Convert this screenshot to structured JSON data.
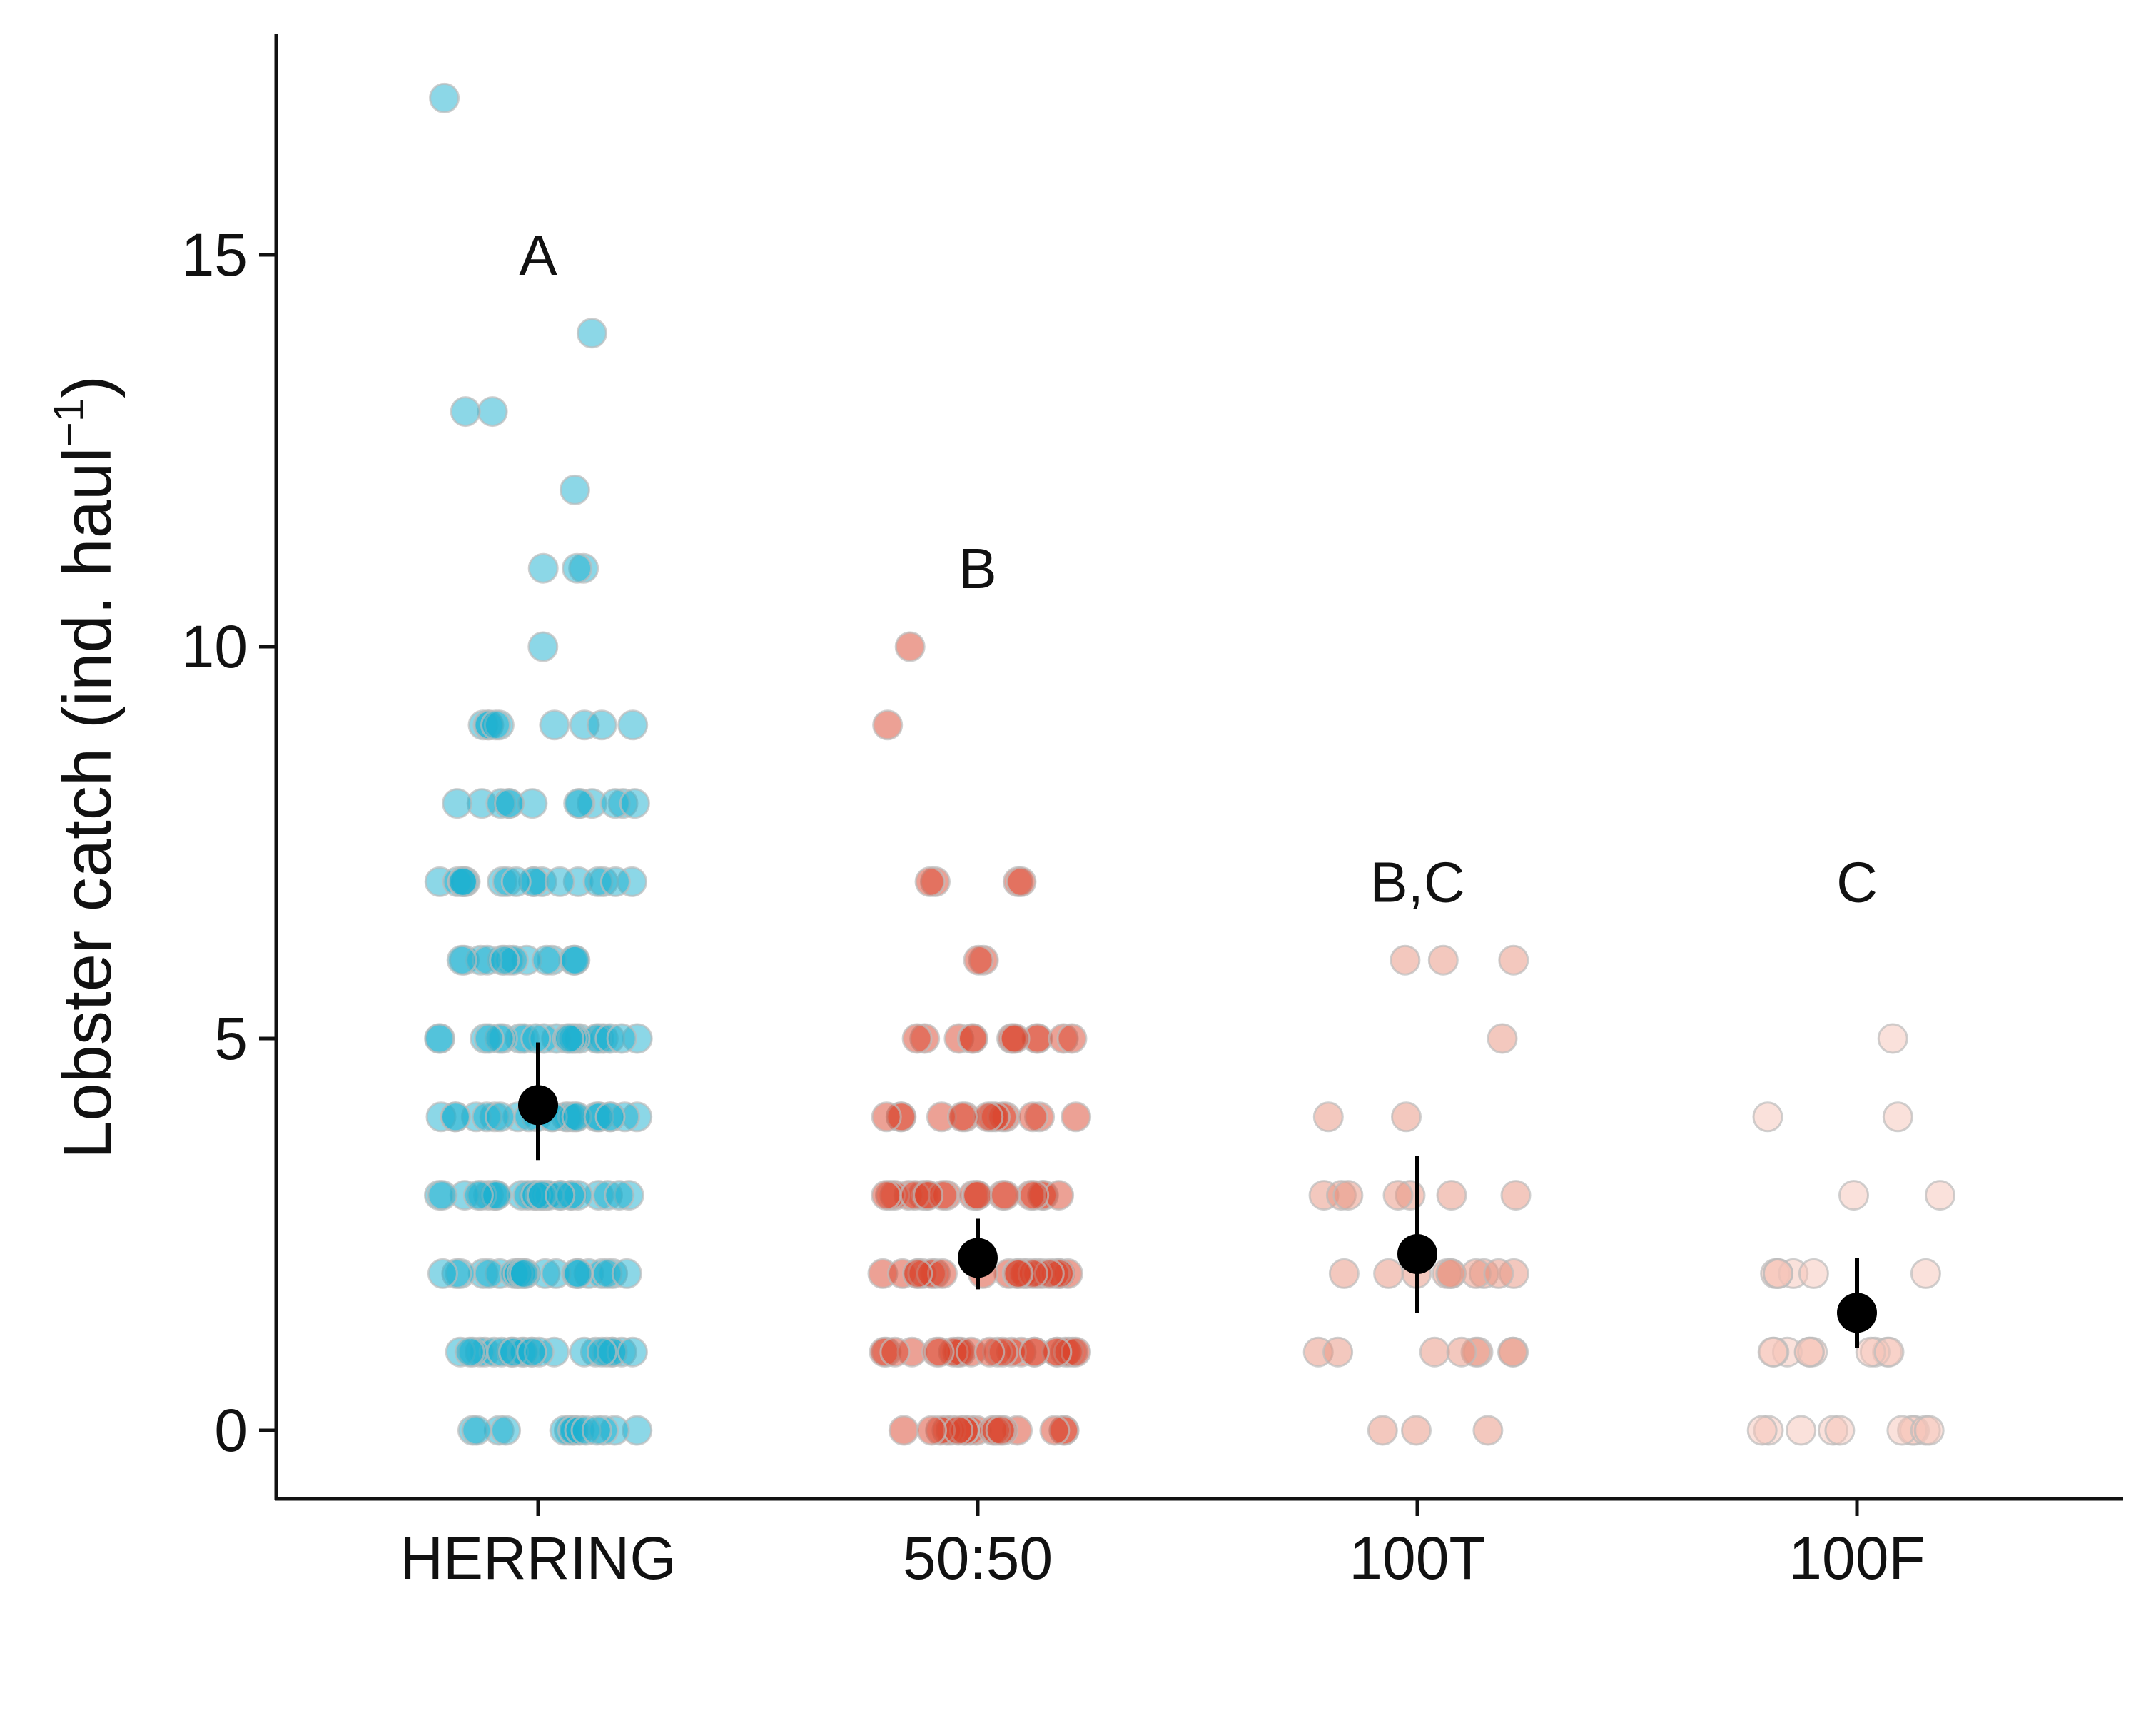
{
  "chart_data": {
    "type": "scatter",
    "subtype": "jittered strip plot with mean ± error bar",
    "title": "",
    "xlabel": "",
    "ylabel": "Lobster catch (ind. haul",
    "ylabel_superscript": "−1",
    "ylabel_close": ")",
    "ylim": [
      -0.8,
      17.8
    ],
    "yticks": [
      0,
      5,
      10,
      15
    ],
    "ytick_labels": [
      "0",
      "5",
      "10",
      "15"
    ],
    "categories": [
      "HERRING",
      "50:50",
      "100T",
      "100F"
    ],
    "grid": false,
    "legend": "none",
    "mean_color": "#000000",
    "groups": [
      {
        "name": "HERRING",
        "color": "#1aafd0",
        "significance_letter": "A",
        "letter_y": 15,
        "mean": 4.15,
        "error_low": 3.45,
        "error_high": 4.95,
        "counts": {
          "0": 14,
          "1": 24,
          "2": 22,
          "3": 26,
          "4": 24,
          "5": 22,
          "6": 14,
          "7": 18,
          "8": 12,
          "9": 9,
          "10": 1,
          "11": 3,
          "12": 1,
          "13": 2,
          "14": 1,
          "17": 1
        }
      },
      {
        "name": "50:50",
        "color": "#d9442b",
        "significance_letter": "B",
        "letter_y": 11,
        "mean": 2.2,
        "error_low": 1.8,
        "error_high": 2.7,
        "counts": {
          "0": 18,
          "1": 24,
          "2": 22,
          "3": 20,
          "4": 14,
          "5": 12,
          "6": 2,
          "7": 4,
          "9": 1,
          "10": 1
        }
      },
      {
        "name": "100T",
        "color": "#e8917e",
        "significance_letter": "B,C",
        "letter_y": 7,
        "mean": 2.25,
        "error_low": 1.5,
        "error_high": 3.5,
        "counts": {
          "0": 3,
          "1": 8,
          "2": 10,
          "3": 7,
          "4": 2,
          "5": 1,
          "6": 3
        }
      },
      {
        "name": "100F",
        "color": "#f6c4b8",
        "significance_letter": "C",
        "letter_y": 7,
        "mean": 1.5,
        "error_low": 1.05,
        "error_high": 2.2,
        "counts": {
          "0": 10,
          "1": 10,
          "2": 6,
          "3": 2,
          "4": 2,
          "5": 1
        }
      }
    ]
  }
}
